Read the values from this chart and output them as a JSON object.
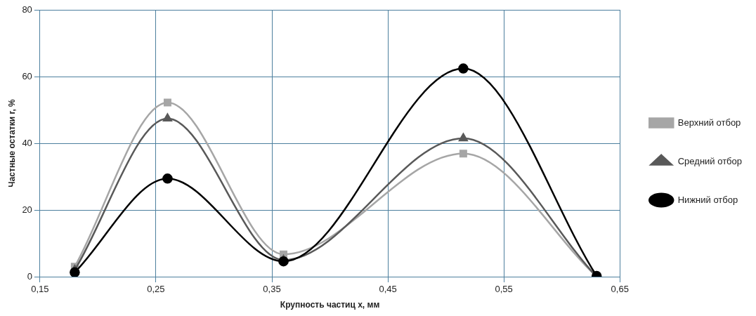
{
  "chart_data": {
    "type": "line",
    "xlabel": "Крупность частиц x, мм",
    "ylabel": "Частные остатки r, %",
    "x": [
      0.18,
      0.26,
      0.36,
      0.515,
      0.63
    ],
    "xlim": [
      0.15,
      0.65
    ],
    "xticks": [
      {
        "value": 0.15,
        "label": "0,15"
      },
      {
        "value": 0.25,
        "label": "0,25"
      },
      {
        "value": 0.35,
        "label": "0,35"
      },
      {
        "value": 0.45,
        "label": "0,45"
      },
      {
        "value": 0.55,
        "label": "0,55"
      },
      {
        "value": 0.65,
        "label": "0,65"
      }
    ],
    "ylim": [
      0,
      80
    ],
    "yticks": [
      0,
      20,
      40,
      60,
      80
    ],
    "grid": true,
    "legend": "right",
    "series": [
      {
        "name": "Верхний отбор",
        "color": "#a6a6a6",
        "marker": "square",
        "values": [
          3,
          52.2,
          6.7,
          36.9,
          0
        ]
      },
      {
        "name": "Средний отбор",
        "color": "#595959",
        "marker": "triangle",
        "values": [
          2,
          47.4,
          5,
          41.5,
          0
        ]
      },
      {
        "name": "Нижний отбор",
        "color": "#000000",
        "marker": "circle",
        "values": [
          1.3,
          29.4,
          4.6,
          62.4,
          0.2
        ]
      }
    ]
  }
}
